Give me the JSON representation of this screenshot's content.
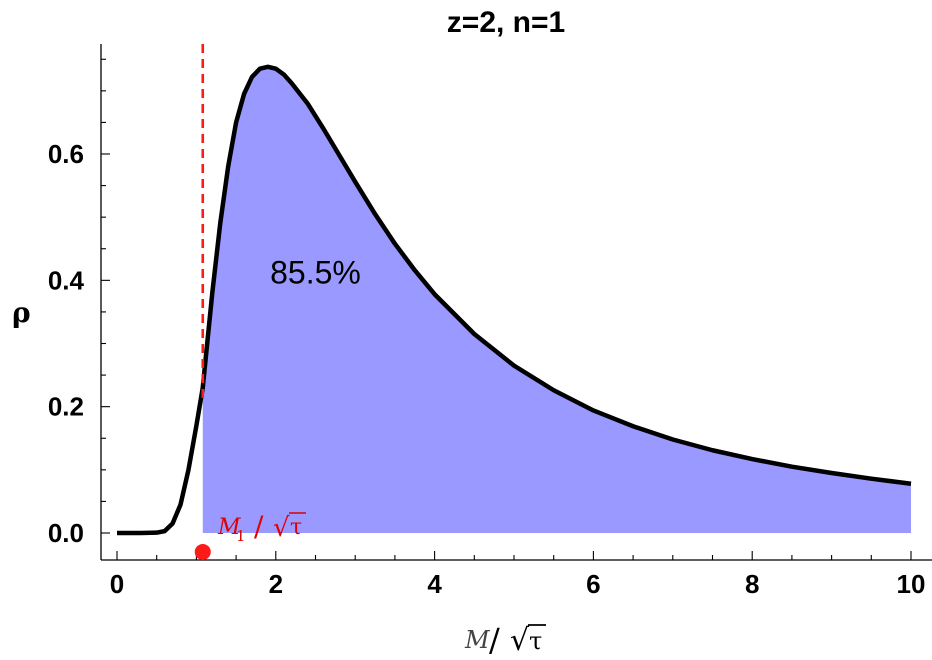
{
  "chart_data": {
    "type": "area",
    "title": "z=2, n=1",
    "ylabel": "ρ",
    "xlabel": {
      "variable": "M",
      "separator": "/",
      "radical_sign": "√",
      "radicand": "τ"
    },
    "xlim": [
      0,
      10
    ],
    "ylim": [
      -0.03,
      0.77
    ],
    "x_ticks": [
      {
        "value": 0,
        "label": "0"
      },
      {
        "value": 2,
        "label": "2"
      },
      {
        "value": 4,
        "label": "4"
      },
      {
        "value": 6,
        "label": "6"
      },
      {
        "value": 8,
        "label": "8"
      },
      {
        "value": 10,
        "label": "10"
      }
    ],
    "y_ticks": [
      {
        "value": 0.0,
        "label": "0.0"
      },
      {
        "value": 0.2,
        "label": "0.2"
      },
      {
        "value": 0.4,
        "label": "0.4"
      },
      {
        "value": 0.6,
        "label": "0.6"
      }
    ],
    "series": [
      {
        "x": [
          0,
          0.3,
          0.5,
          0.6,
          0.7,
          0.8,
          0.9,
          1.0,
          1.08,
          1.2,
          1.3,
          1.4,
          1.5,
          1.6,
          1.7,
          1.8,
          1.9,
          2.0,
          2.1,
          2.2,
          2.4,
          2.6,
          2.8,
          3.0,
          3.25,
          3.5,
          3.75,
          4.0,
          4.5,
          5.0,
          5.5,
          6.0,
          6.5,
          7.0,
          7.5,
          8.0,
          8.5,
          9.0,
          9.5,
          10.0
        ],
        "y": [
          0,
          0,
          0.0005,
          0.003,
          0.015,
          0.045,
          0.1,
          0.17,
          0.23,
          0.38,
          0.49,
          0.58,
          0.65,
          0.695,
          0.722,
          0.735,
          0.738,
          0.735,
          0.726,
          0.712,
          0.68,
          0.64,
          0.598,
          0.556,
          0.505,
          0.458,
          0.416,
          0.378,
          0.315,
          0.265,
          0.226,
          0.194,
          0.169,
          0.148,
          0.131,
          0.117,
          0.105,
          0.095,
          0.086,
          0.078
        ],
        "color": "#000000"
      }
    ],
    "shaded_region": {
      "x_start": 1.08,
      "x_end": 10,
      "color": "#9999ff",
      "label": "85.5%",
      "label_position": {
        "x": 2.5,
        "y": 0.395
      }
    },
    "marker": {
      "x": 1.08,
      "y": -0.03,
      "color": "#ff1a1a",
      "line_style": "dashed",
      "label": {
        "variable": "M",
        "subscript": "1",
        "separator": "/",
        "radical_sign": "√",
        "radicand": "τ"
      }
    },
    "grid": false,
    "legend": "none"
  }
}
